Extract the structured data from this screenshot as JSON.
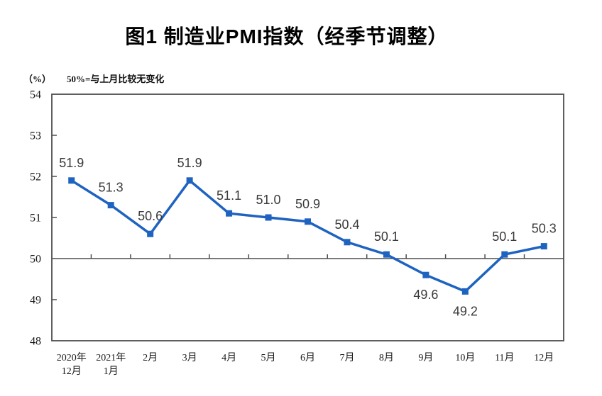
{
  "figure": {
    "title": "图1 制造业PMI指数（经季节调整）",
    "unit_label": "（%）",
    "reference_note": "50%=与上月比较无变化"
  },
  "chart_data": {
    "type": "line",
    "title": "图1 制造业PMI指数（经季节调整）",
    "ylabel": "（%）",
    "note": "50%=与上月比较无变化",
    "categories": [
      "2020年12月",
      "2021年1月",
      "2月",
      "3月",
      "4月",
      "5月",
      "6月",
      "7月",
      "8月",
      "9月",
      "10月",
      "11月",
      "12月"
    ],
    "x_tick_lines": [
      [
        "2020年",
        "12月"
      ],
      [
        "2021年",
        "1月"
      ],
      [
        "2月"
      ],
      [
        "3月"
      ],
      [
        "4月"
      ],
      [
        "5月"
      ],
      [
        "6月"
      ],
      [
        "7月"
      ],
      [
        "8月"
      ],
      [
        "9月"
      ],
      [
        "10月"
      ],
      [
        "11月"
      ],
      [
        "12月"
      ]
    ],
    "series": [
      {
        "name": "制造业PMI",
        "values": [
          51.9,
          51.3,
          50.6,
          51.9,
          51.1,
          51.0,
          50.9,
          50.4,
          50.1,
          49.6,
          49.2,
          50.1,
          50.3
        ]
      }
    ],
    "point_labels": [
      "51.9",
      "51.3",
      "50.6",
      "51.9",
      "51.1",
      "51.0",
      "50.9",
      "50.4",
      "50.1",
      "49.6",
      "49.2",
      "50.1",
      "50.3"
    ],
    "labels_below_indices": [
      9,
      10
    ],
    "ylim": [
      48,
      54
    ],
    "y_ticks": [
      48,
      49,
      50,
      51,
      52,
      53,
      54
    ],
    "reference_line_y": 50,
    "grid": false,
    "legend": "none",
    "colors": {
      "line": "#1e63c0",
      "marker": "#1e63c0",
      "axis": "#4d4d4d",
      "data_label": "#3a3a3a",
      "tick_label": "#1a1a1a"
    }
  }
}
